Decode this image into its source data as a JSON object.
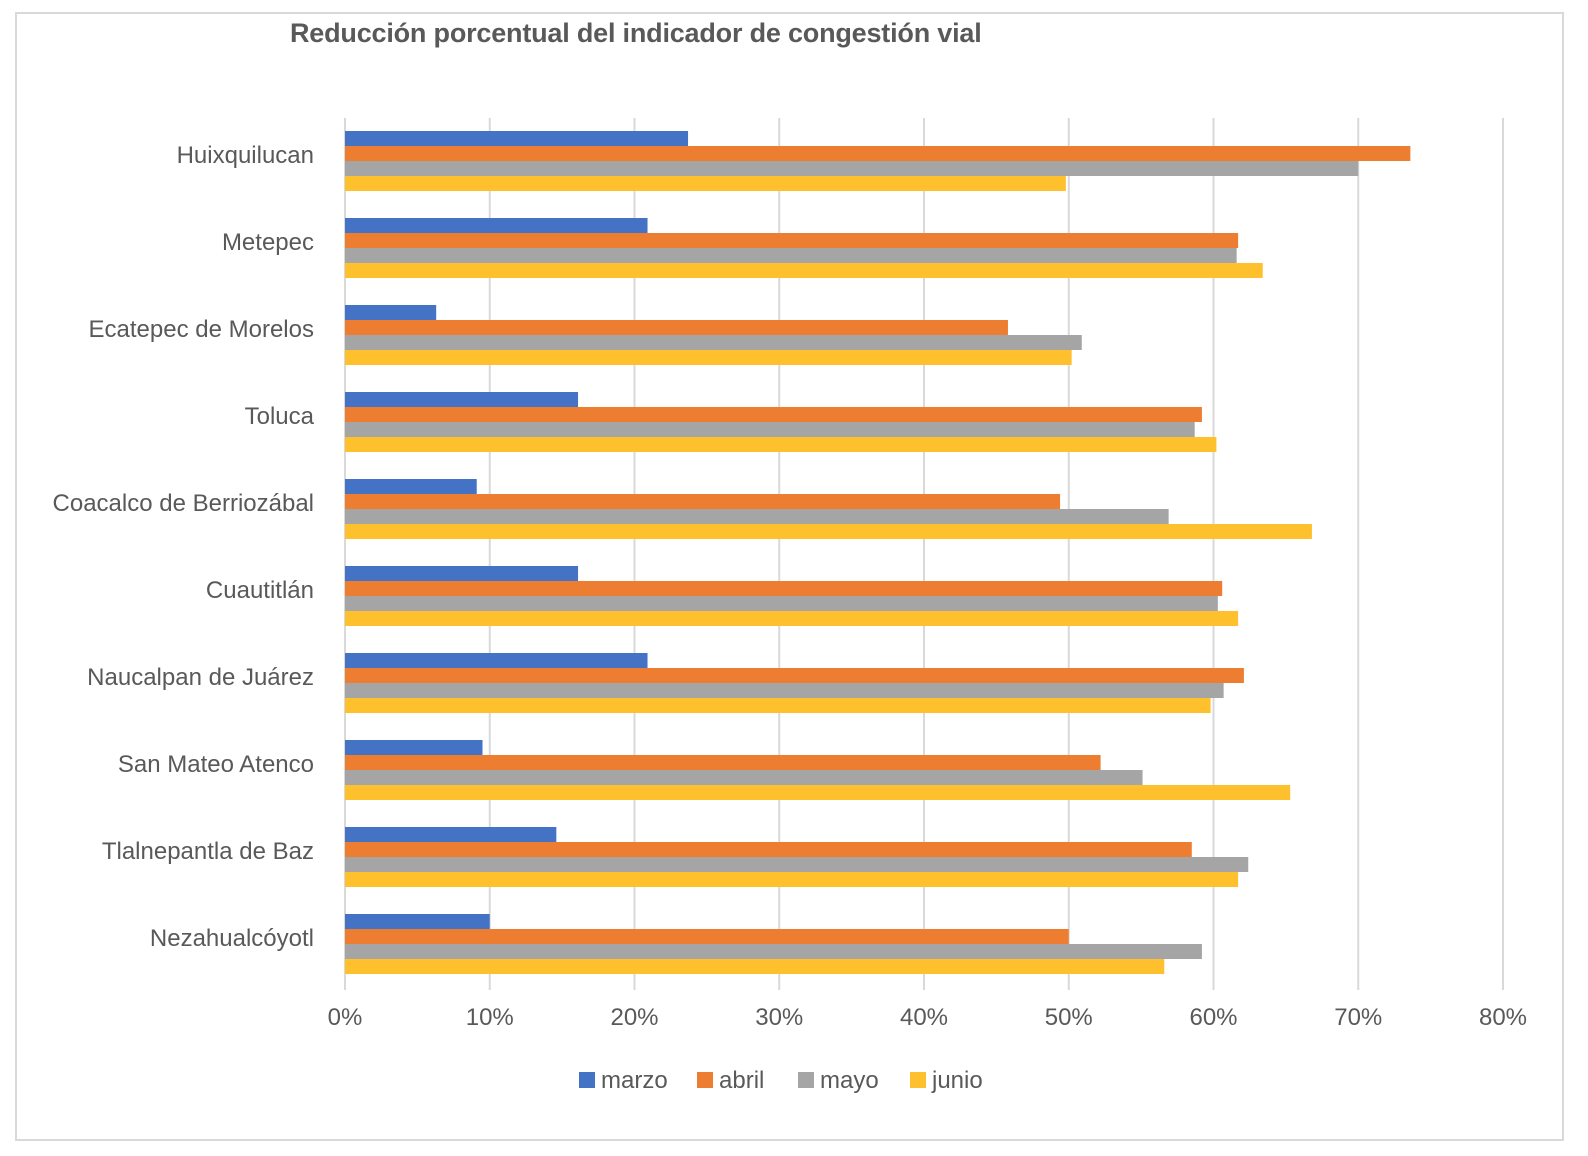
{
  "chart_data": {
    "type": "bar",
    "orientation": "horizontal",
    "title": "Reducción porcentual del indicador de congestión vial",
    "xlabel": "",
    "ylabel": "",
    "xlim": [
      0,
      0.8
    ],
    "x_ticks": [
      "0%",
      "10%",
      "20%",
      "30%",
      "40%",
      "50%",
      "60%",
      "70%",
      "80%"
    ],
    "x_tick_values": [
      0,
      0.1,
      0.2,
      0.3,
      0.4,
      0.5,
      0.6,
      0.7,
      0.8
    ],
    "grid": true,
    "legend_position": "bottom",
    "categories": [
      "Huixquilucan",
      "Metepec",
      "Ecatepec de Morelos",
      "Toluca",
      "Coacalco de Berriozábal",
      "Cuautitlán",
      "Naucalpan de Juárez",
      "San Mateo Atenco",
      "Tlalnepantla de Baz",
      "Nezahualcóyotl"
    ],
    "series": [
      {
        "name": "marzo",
        "color": "#4472c4",
        "values": [
          0.237,
          0.209,
          0.063,
          0.161,
          0.091,
          0.161,
          0.209,
          0.095,
          0.146,
          0.1
        ]
      },
      {
        "name": "abril",
        "color": "#ed7d31",
        "values": [
          0.736,
          0.617,
          0.458,
          0.592,
          0.494,
          0.606,
          0.621,
          0.522,
          0.585,
          0.5
        ]
      },
      {
        "name": "mayo",
        "color": "#a5a5a5",
        "values": [
          0.7,
          0.616,
          0.509,
          0.587,
          0.569,
          0.603,
          0.607,
          0.551,
          0.624,
          0.592
        ]
      },
      {
        "name": "junio",
        "color": "#ffc02e",
        "values": [
          0.498,
          0.634,
          0.502,
          0.602,
          0.668,
          0.617,
          0.598,
          0.653,
          0.617,
          0.566
        ]
      }
    ]
  }
}
